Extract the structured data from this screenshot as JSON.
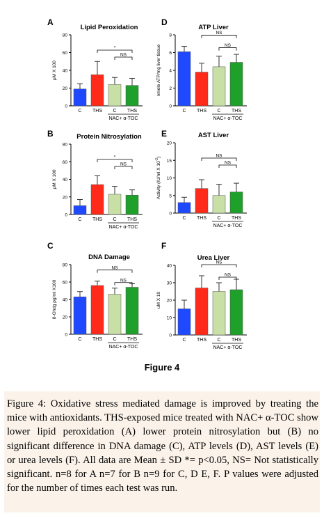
{
  "figure_title": "Figure 4",
  "caption": {
    "label": "Figure 4:",
    "text": "Oxidative stress mediated damage is improved by treating the mice with antioxidants. THS-exposed mice treated with NAC+ α-TOC show lower lipid peroxidation (A) lower protein nitrosylation but (B) no significant difference in DNA damage (C), ATP levels (D), AST levels (E) or urea levels (F). All data are Mean ± SD *= p<0.05, NS= Not statistically significant. n=8 for A n=7 for B n=9 for C, D E, F. P values were adjusted for the number of times each test was run."
  },
  "colors": {
    "C": "#1f49ff",
    "THS": "#ff2a1a",
    "NAC_C": "#c8e0a6",
    "NAC_THS": "#1fa02b"
  },
  "group_label": "NAC+ α-TOC",
  "chart_data": [
    {
      "panel": "A",
      "type": "bar",
      "title": "Lipid Peroxidation",
      "ylabel": "μM X 100",
      "categories": [
        "C",
        "THS",
        "C",
        "THS"
      ],
      "values": [
        19,
        35,
        24,
        23
      ],
      "errors": [
        6,
        15,
        8,
        8
      ],
      "ylim": [
        0,
        80
      ],
      "yticks": [
        0,
        20,
        40,
        60,
        80
      ],
      "comparisons": [
        {
          "from": 1,
          "to": 3,
          "label": "*"
        },
        {
          "from": 2,
          "to": 3,
          "label": "NS"
        }
      ]
    },
    {
      "panel": "B",
      "type": "bar",
      "title": "Protein Nitrosylation",
      "ylabel": "μM X 100",
      "categories": [
        "C",
        "THS",
        "C",
        "THS"
      ],
      "values": [
        10,
        34,
        23,
        22
      ],
      "errors": [
        7,
        10,
        9,
        6
      ],
      "ylim": [
        0,
        80
      ],
      "yticks": [
        0,
        20,
        40,
        60,
        80
      ],
      "comparisons": [
        {
          "from": 1,
          "to": 3,
          "label": "*"
        },
        {
          "from": 2,
          "to": 3,
          "label": "NS"
        }
      ]
    },
    {
      "panel": "C",
      "type": "bar",
      "title": "DNA Damage",
      "ylabel": "8-Ohdg pg/ml X100",
      "categories": [
        "C",
        "THS",
        "C",
        "THS"
      ],
      "values": [
        43,
        56,
        46,
        54
      ],
      "errors": [
        6,
        5,
        7,
        4
      ],
      "ylim": [
        0,
        80
      ],
      "yticks": [
        0,
        20,
        40,
        60,
        80
      ],
      "comparisons": [
        {
          "from": 1,
          "to": 3,
          "label": "NS"
        },
        {
          "from": 2,
          "to": 3,
          "label": "NS"
        }
      ]
    },
    {
      "panel": "D",
      "type": "bar",
      "title": "ATP Liver",
      "ylabel": "nmole ATP/mg liver tissue",
      "categories": [
        "C",
        "THS",
        "C",
        "THS"
      ],
      "values": [
        6.1,
        3.8,
        4.4,
        4.9
      ],
      "errors": [
        0.6,
        1.0,
        1.2,
        0.9
      ],
      "ylim": [
        0,
        8
      ],
      "yticks": [
        0,
        2,
        4,
        6,
        8
      ],
      "comparisons": [
        {
          "from": 1,
          "to": 3,
          "label": "NS"
        },
        {
          "from": 2,
          "to": 3,
          "label": "NS"
        }
      ]
    },
    {
      "panel": "E",
      "type": "bar",
      "title": "AST Liver",
      "ylabel": "Activity (IU/ml X 10",
      "ylabel_sup": "-2",
      "ylabel_end": ")",
      "categories": [
        "C",
        "THS",
        "C",
        "THS"
      ],
      "values": [
        3,
        7,
        5,
        6
      ],
      "errors": [
        1.5,
        2.5,
        3.2,
        2.5
      ],
      "ylim": [
        0,
        20
      ],
      "yticks": [
        0,
        5,
        10,
        15,
        20
      ],
      "comparisons": [
        {
          "from": 1,
          "to": 3,
          "label": "NS"
        },
        {
          "from": 2,
          "to": 3,
          "label": "NS"
        }
      ]
    },
    {
      "panel": "F",
      "type": "bar",
      "title": "Urea Liver",
      "ylabel": "uM X 10",
      "categories": [
        "C",
        "THS",
        "C",
        "THS"
      ],
      "values": [
        15,
        27,
        25,
        26
      ],
      "errors": [
        5,
        7,
        5,
        6
      ],
      "ylim": [
        0,
        40
      ],
      "yticks": [
        0,
        10,
        20,
        30,
        40
      ],
      "comparisons": [
        {
          "from": 1,
          "to": 3,
          "label": "NS"
        },
        {
          "from": 2,
          "to": 3,
          "label": "NS"
        }
      ]
    }
  ]
}
